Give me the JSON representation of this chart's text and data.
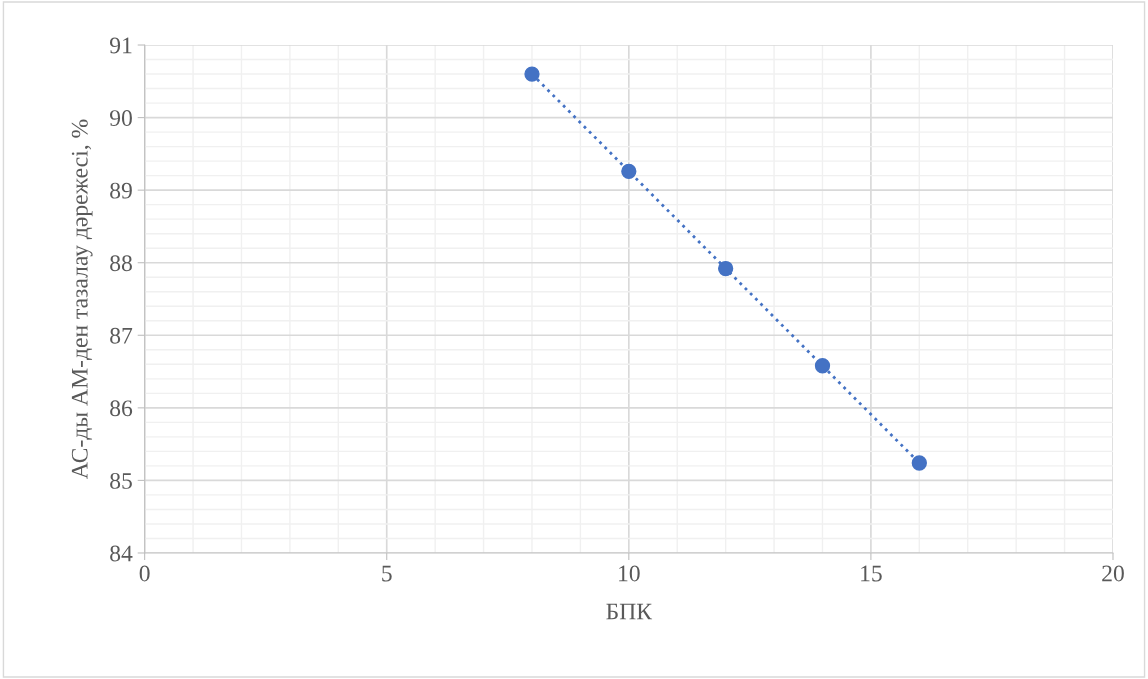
{
  "chart_data": {
    "type": "line",
    "xlabel": "БПК",
    "ylabel": "АС-ды АМ-ден тазалау дәрежесі, %",
    "x": [
      8,
      10,
      12,
      14,
      16
    ],
    "series": [
      {
        "color": "#4472c4",
        "values": [
          90.6,
          89.26,
          87.92,
          86.58,
          85.24
        ]
      }
    ],
    "marker": "circle",
    "line_style": "dotted",
    "xlim": [
      0,
      20
    ],
    "xticks": [
      0,
      5,
      10,
      15,
      20
    ],
    "ylim": [
      84,
      91
    ],
    "yticks": [
      84,
      85,
      86,
      87,
      88,
      89,
      90,
      91
    ],
    "grid": true,
    "legend": false
  }
}
